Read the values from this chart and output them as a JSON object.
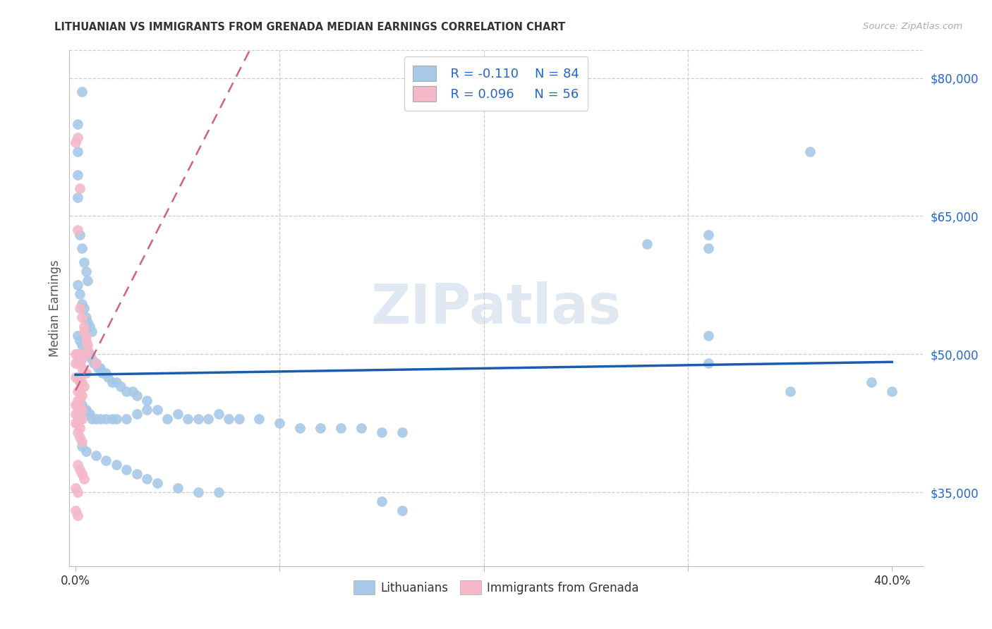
{
  "title": "LITHUANIAN VS IMMIGRANTS FROM GRENADA MEDIAN EARNINGS CORRELATION CHART",
  "source": "Source: ZipAtlas.com",
  "ylabel": "Median Earnings",
  "ytick_labels": [
    "$35,000",
    "$50,000",
    "$65,000",
    "$80,000"
  ],
  "ytick_values": [
    35000,
    50000,
    65000,
    80000
  ],
  "ymin": 27000,
  "ymax": 83000,
  "xmin": -0.003,
  "xmax": 0.415,
  "watermark": "ZIPatlas",
  "blue_color": "#a8c8e8",
  "pink_color": "#f4b8c8",
  "blue_line_color": "#1a5cb0",
  "pink_line_color": "#d46080",
  "blue_scatter": [
    [
      0.003,
      78500
    ],
    [
      0.001,
      75000
    ],
    [
      0.001,
      72000
    ],
    [
      0.001,
      69500
    ],
    [
      0.001,
      67000
    ],
    [
      0.002,
      63000
    ],
    [
      0.003,
      61500
    ],
    [
      0.004,
      60000
    ],
    [
      0.005,
      59000
    ],
    [
      0.006,
      58000
    ],
    [
      0.001,
      57500
    ],
    [
      0.002,
      56500
    ],
    [
      0.003,
      55500
    ],
    [
      0.004,
      55000
    ],
    [
      0.005,
      54000
    ],
    [
      0.006,
      53500
    ],
    [
      0.007,
      53000
    ],
    [
      0.008,
      52500
    ],
    [
      0.001,
      52000
    ],
    [
      0.002,
      51500
    ],
    [
      0.003,
      51000
    ],
    [
      0.004,
      51000
    ],
    [
      0.005,
      50500
    ],
    [
      0.006,
      50000
    ],
    [
      0.007,
      50000
    ],
    [
      0.008,
      49500
    ],
    [
      0.009,
      49000
    ],
    [
      0.01,
      49000
    ],
    [
      0.011,
      48500
    ],
    [
      0.012,
      48500
    ],
    [
      0.013,
      48000
    ],
    [
      0.015,
      48000
    ],
    [
      0.016,
      47500
    ],
    [
      0.018,
      47000
    ],
    [
      0.02,
      47000
    ],
    [
      0.022,
      46500
    ],
    [
      0.025,
      46000
    ],
    [
      0.028,
      46000
    ],
    [
      0.03,
      45500
    ],
    [
      0.035,
      45000
    ],
    [
      0.002,
      44500
    ],
    [
      0.003,
      44500
    ],
    [
      0.004,
      44000
    ],
    [
      0.005,
      44000
    ],
    [
      0.006,
      43500
    ],
    [
      0.007,
      43500
    ],
    [
      0.008,
      43000
    ],
    [
      0.01,
      43000
    ],
    [
      0.012,
      43000
    ],
    [
      0.015,
      43000
    ],
    [
      0.018,
      43000
    ],
    [
      0.02,
      43000
    ],
    [
      0.025,
      43000
    ],
    [
      0.03,
      43500
    ],
    [
      0.035,
      44000
    ],
    [
      0.04,
      44000
    ],
    [
      0.045,
      43000
    ],
    [
      0.05,
      43500
    ],
    [
      0.055,
      43000
    ],
    [
      0.06,
      43000
    ],
    [
      0.065,
      43000
    ],
    [
      0.07,
      43500
    ],
    [
      0.075,
      43000
    ],
    [
      0.08,
      43000
    ],
    [
      0.09,
      43000
    ],
    [
      0.1,
      42500
    ],
    [
      0.11,
      42000
    ],
    [
      0.12,
      42000
    ],
    [
      0.13,
      42000
    ],
    [
      0.14,
      42000
    ],
    [
      0.15,
      41500
    ],
    [
      0.16,
      41500
    ],
    [
      0.003,
      40000
    ],
    [
      0.005,
      39500
    ],
    [
      0.01,
      39000
    ],
    [
      0.015,
      38500
    ],
    [
      0.02,
      38000
    ],
    [
      0.025,
      37500
    ],
    [
      0.03,
      37000
    ],
    [
      0.035,
      36500
    ],
    [
      0.04,
      36000
    ],
    [
      0.05,
      35500
    ],
    [
      0.06,
      35000
    ],
    [
      0.07,
      35000
    ],
    [
      0.15,
      34000
    ],
    [
      0.16,
      33000
    ],
    [
      0.31,
      63000
    ],
    [
      0.31,
      61500
    ],
    [
      0.28,
      62000
    ],
    [
      0.31,
      52000
    ],
    [
      0.31,
      49000
    ],
    [
      0.36,
      72000
    ],
    [
      0.35,
      46000
    ],
    [
      0.4,
      46000
    ],
    [
      0.39,
      47000
    ]
  ],
  "pink_scatter": [
    [
      0.0,
      73000
    ],
    [
      0.001,
      73500
    ],
    [
      0.002,
      68000
    ],
    [
      0.001,
      63500
    ],
    [
      0.002,
      55000
    ],
    [
      0.003,
      54000
    ],
    [
      0.004,
      53000
    ],
    [
      0.004,
      52500
    ],
    [
      0.005,
      52000
    ],
    [
      0.005,
      51500
    ],
    [
      0.006,
      51000
    ],
    [
      0.006,
      50500
    ],
    [
      0.0,
      50000
    ],
    [
      0.001,
      50000
    ],
    [
      0.002,
      50000
    ],
    [
      0.003,
      49500
    ],
    [
      0.0,
      49000
    ],
    [
      0.001,
      49000
    ],
    [
      0.002,
      49000
    ],
    [
      0.003,
      48500
    ],
    [
      0.004,
      48000
    ],
    [
      0.005,
      48000
    ],
    [
      0.0,
      47500
    ],
    [
      0.001,
      47500
    ],
    [
      0.002,
      47000
    ],
    [
      0.003,
      47000
    ],
    [
      0.004,
      46500
    ],
    [
      0.001,
      46000
    ],
    [
      0.002,
      46000
    ],
    [
      0.003,
      45500
    ],
    [
      0.001,
      45000
    ],
    [
      0.002,
      45000
    ],
    [
      0.0,
      44500
    ],
    [
      0.001,
      44500
    ],
    [
      0.002,
      44000
    ],
    [
      0.003,
      44000
    ],
    [
      0.0,
      43500
    ],
    [
      0.001,
      43500
    ],
    [
      0.002,
      43000
    ],
    [
      0.003,
      43000
    ],
    [
      0.0,
      42500
    ],
    [
      0.001,
      42500
    ],
    [
      0.002,
      42000
    ],
    [
      0.001,
      41500
    ],
    [
      0.002,
      41000
    ],
    [
      0.003,
      40500
    ],
    [
      0.001,
      38000
    ],
    [
      0.002,
      37500
    ],
    [
      0.003,
      37000
    ],
    [
      0.004,
      36500
    ],
    [
      0.0,
      35500
    ],
    [
      0.001,
      35000
    ],
    [
      0.0,
      33000
    ],
    [
      0.001,
      32500
    ],
    [
      0.005,
      50000
    ],
    [
      0.01,
      49000
    ]
  ]
}
